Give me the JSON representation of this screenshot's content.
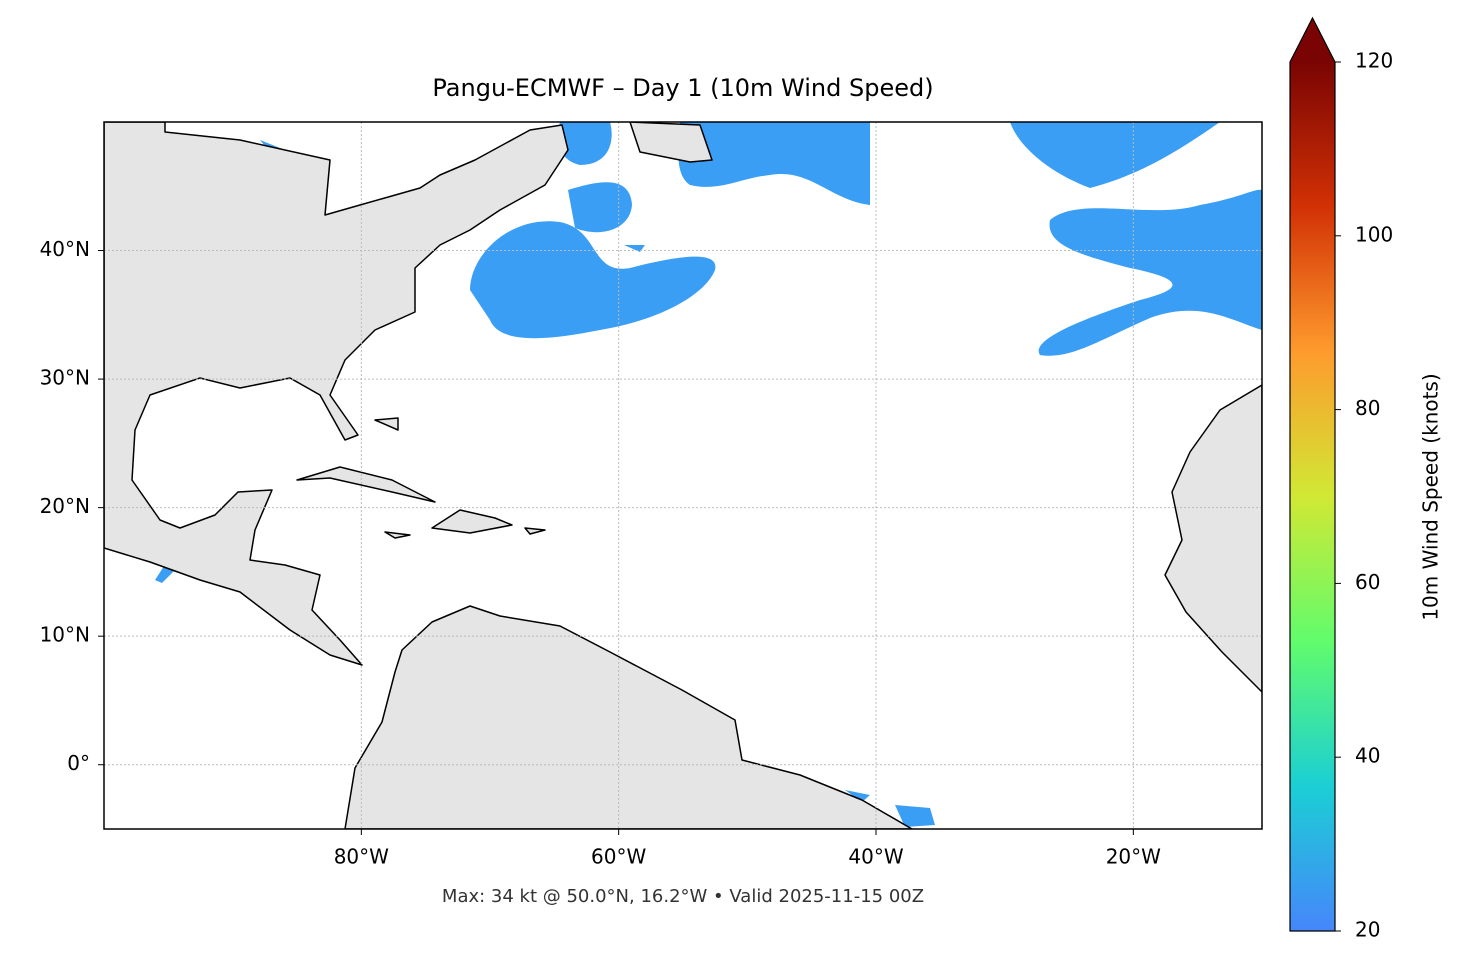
{
  "chart_data": {
    "type": "map",
    "title": "Pangu-ECMWF – Day 1 (10m Wind Speed)",
    "footer": "Max: 34 kt @ 50.0°N, 16.2°W • Valid 2025-11-15 00Z",
    "xlim": [
      -100,
      -10
    ],
    "ylim": [
      -5,
      50
    ],
    "xticks": [
      {
        "value": -80,
        "label": "80°W"
      },
      {
        "value": -60,
        "label": "60°W"
      },
      {
        "value": -40,
        "label": "40°W"
      },
      {
        "value": -20,
        "label": "20°W"
      }
    ],
    "yticks": [
      {
        "value": 0,
        "label": "0°"
      },
      {
        "value": 10,
        "label": "10°N"
      },
      {
        "value": 20,
        "label": "20°N"
      },
      {
        "value": 30,
        "label": "30°N"
      },
      {
        "value": 40,
        "label": "40°N"
      }
    ],
    "grid": true,
    "colorbar": {
      "label": "10m Wind Speed (knots)",
      "lim": [
        20,
        120
      ],
      "ticks": [
        20,
        40,
        60,
        80,
        100,
        120
      ],
      "extend": "max",
      "colors": [
        "#4686fb",
        "#1bcfd4",
        "#61fc6c",
        "#d1e834",
        "#fe9b2d",
        "#d23105",
        "#7a0403"
      ]
    }
  }
}
